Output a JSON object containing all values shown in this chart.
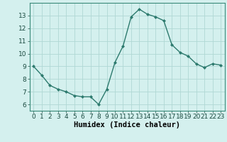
{
  "x": [
    0,
    1,
    2,
    3,
    4,
    5,
    6,
    7,
    8,
    9,
    10,
    11,
    12,
    13,
    14,
    15,
    16,
    17,
    18,
    19,
    20,
    21,
    22,
    23
  ],
  "y": [
    9.0,
    8.3,
    7.5,
    7.2,
    7.0,
    6.7,
    6.6,
    6.6,
    6.0,
    7.2,
    9.3,
    10.6,
    12.9,
    13.5,
    13.1,
    12.9,
    12.6,
    10.7,
    10.1,
    9.8,
    9.2,
    8.9,
    9.2,
    9.1
  ],
  "line_color": "#2d7a6e",
  "marker_color": "#2d7a6e",
  "bg_color": "#d4f0ee",
  "grid_color": "#b0d8d4",
  "xlabel": "Humidex (Indice chaleur)",
  "xlim": [
    -0.5,
    23.5
  ],
  "ylim": [
    5.5,
    14.0
  ],
  "yticks": [
    6,
    7,
    8,
    9,
    10,
    11,
    12,
    13
  ],
  "xticks": [
    0,
    1,
    2,
    3,
    4,
    5,
    6,
    7,
    8,
    9,
    10,
    11,
    12,
    13,
    14,
    15,
    16,
    17,
    18,
    19,
    20,
    21,
    22,
    23
  ],
  "xlabel_fontsize": 7.5,
  "tick_fontsize": 6.5,
  "line_width": 1.0,
  "marker_size": 2.5
}
